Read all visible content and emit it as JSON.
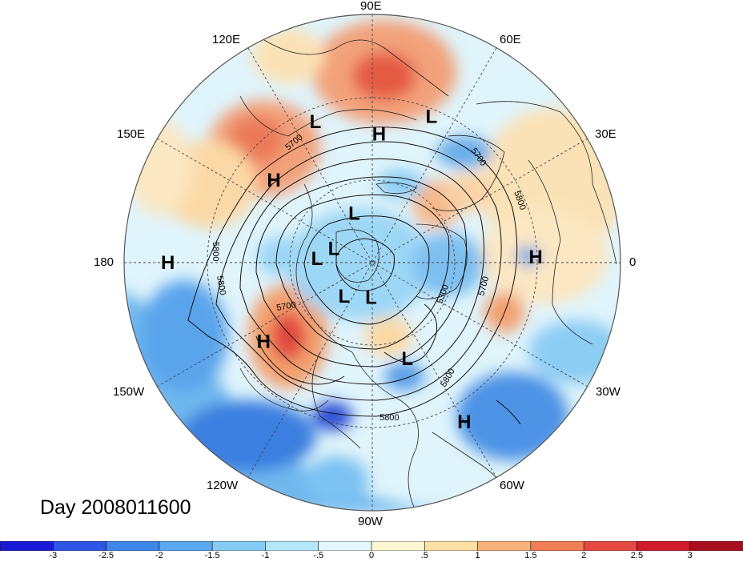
{
  "map": {
    "longitude_labels": {
      "north": "90E",
      "north_left": "120E",
      "north_right": "60E",
      "upper_left": "150E",
      "upper_right": "30E",
      "left": "180",
      "right": "0",
      "lower_left": "150W",
      "lower_right": "30W",
      "south_left": "120W",
      "south_right": "60W",
      "south": "90W"
    },
    "pressure_centers": [
      {
        "type": "L",
        "lon": 112,
        "lat": 38
      },
      {
        "type": "L",
        "lon": 68,
        "lat": 36
      },
      {
        "type": "H",
        "lon": 87,
        "lat": 46
      },
      {
        "type": "H",
        "lon": 140,
        "lat": 46
      },
      {
        "type": "L",
        "lon": 110,
        "lat": 72
      },
      {
        "type": "L",
        "lon": 160,
        "lat": 76
      },
      {
        "type": "L",
        "lon": 176,
        "lat": 71
      },
      {
        "type": "H",
        "lon": 180,
        "lat": 20
      },
      {
        "type": "H",
        "lon": 2,
        "lat": 34
      },
      {
        "type": "L",
        "lon": 230,
        "lat": 75
      },
      {
        "type": "L",
        "lon": 268,
        "lat": 78
      },
      {
        "type": "H",
        "lon": 216,
        "lat": 44
      },
      {
        "type": "L",
        "lon": 290,
        "lat": 55
      },
      {
        "type": "H",
        "lon": 300,
        "lat": 27
      }
    ],
    "contour_labels": [
      "5700",
      "5800",
      "5800",
      "5700",
      "5800",
      "5800",
      "5700",
      "5300",
      "5700",
      "5800"
    ],
    "colors": {
      "ocean_base": "#dff4fb",
      "frame": "#555555",
      "grid": "#444444"
    }
  },
  "title": "Day 2008011600",
  "colorbar": {
    "ticks": [
      "-3",
      "-2.5",
      "-2",
      "-1.5",
      "-1",
      "-.5",
      "0",
      ".5",
      "1",
      "1.5",
      "2",
      "2.5",
      "3"
    ],
    "colors": [
      "#1a1ad6",
      "#2e55e6",
      "#3f86ea",
      "#5aa8f0",
      "#86cbf6",
      "#b6e6fa",
      "#e2f6fc",
      "#fdf6d2",
      "#fde0a4",
      "#f9b27a",
      "#f07f55",
      "#e54840",
      "#d11a2a",
      "#a80e1e"
    ]
  }
}
